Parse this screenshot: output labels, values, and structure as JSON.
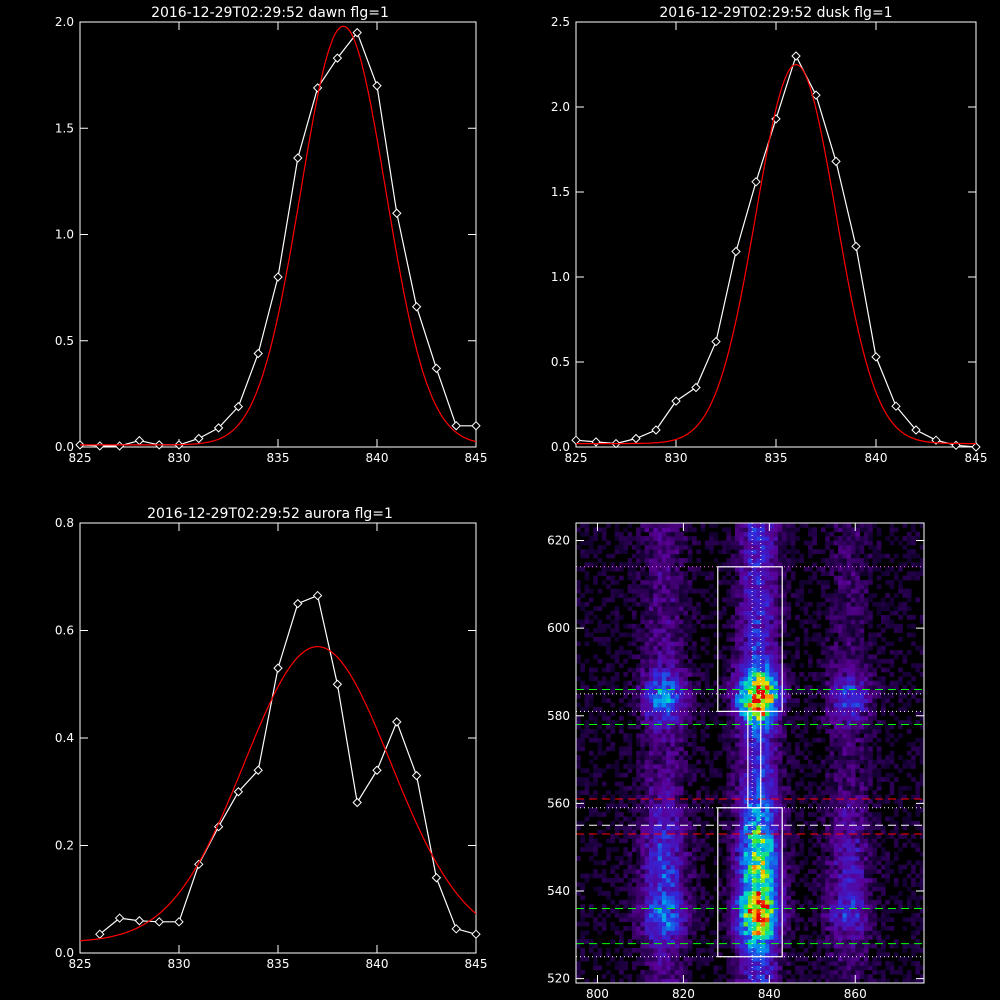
{
  "chart_data": [
    {
      "type": "line",
      "title": "2016-12-29T02:29:52 dawn flg=1",
      "xlim": [
        825,
        845
      ],
      "ylim": [
        0,
        2.0
      ],
      "xticks": [
        "825",
        "830",
        "835",
        "840",
        "845"
      ],
      "yticks": [
        "0.0",
        "0.5",
        "1.0",
        "1.5",
        "2.0"
      ],
      "x": [
        825,
        826,
        827,
        828,
        829,
        830,
        831,
        832,
        833,
        834,
        835,
        836,
        837,
        838,
        839,
        840,
        841,
        842,
        843,
        844,
        845
      ],
      "series": [
        {
          "values": [
            0.01,
            0.005,
            0.005,
            0.03,
            0.01,
            0.01,
            0.04,
            0.09,
            0.19,
            0.44,
            0.8,
            1.36,
            1.69,
            1.83,
            1.95,
            1.7,
            1.1,
            0.66,
            0.37,
            0.1,
            0.1
          ],
          "color": "#ffffff",
          "markers": true
        },
        {
          "gaussian": {
            "amplitude": 1.97,
            "center": 838.3,
            "sigma": 2.15,
            "offset": 0.01
          },
          "color": "#ff0000"
        }
      ]
    },
    {
      "type": "line",
      "title": "2016-12-29T02:29:52 dusk flg=1",
      "xlim": [
        825,
        845
      ],
      "ylim": [
        0,
        2.5
      ],
      "xticks": [
        "825",
        "830",
        "835",
        "840",
        "845"
      ],
      "yticks": [
        "0.0",
        "0.5",
        "1.0",
        "1.5",
        "2.0",
        "2.5"
      ],
      "x": [
        825,
        826,
        827,
        828,
        829,
        830,
        831,
        832,
        833,
        834,
        835,
        836,
        837,
        838,
        839,
        840,
        841,
        842,
        843,
        844,
        845
      ],
      "series": [
        {
          "values": [
            0.04,
            0.03,
            0.02,
            0.05,
            0.1,
            0.27,
            0.35,
            0.62,
            1.15,
            1.56,
            1.93,
            2.3,
            2.07,
            1.68,
            1.18,
            0.53,
            0.24,
            0.1,
            0.04,
            0.01,
            0.0
          ],
          "color": "#ffffff",
          "markers": true
        },
        {
          "gaussian": {
            "amplitude": 2.23,
            "center": 836.0,
            "sigma": 2.0,
            "offset": 0.02
          },
          "color": "#ff0000"
        }
      ]
    },
    {
      "type": "line",
      "title": "2016-12-29T02:29:52 aurora flg=1",
      "xlim": [
        825,
        845
      ],
      "ylim": [
        0,
        0.8
      ],
      "xticks": [
        "825",
        "830",
        "835",
        "840",
        "845"
      ],
      "yticks": [
        "0.0",
        "0.2",
        "0.4",
        "0.6",
        "0.8"
      ],
      "x": [
        826,
        827,
        828,
        829,
        830,
        831,
        832,
        833,
        834,
        835,
        836,
        837,
        838,
        839,
        840,
        841,
        842,
        843,
        844,
        845
      ],
      "series": [
        {
          "values": [
            0.035,
            0.065,
            0.06,
            0.058,
            0.058,
            0.165,
            0.235,
            0.3,
            0.34,
            0.53,
            0.65,
            0.665,
            0.5,
            0.28,
            0.34,
            0.43,
            0.33,
            0.14,
            0.045,
            0.035
          ],
          "color": "#ffffff",
          "markers": true
        },
        {
          "gaussian": {
            "amplitude": 0.55,
            "center": 837.0,
            "sigma": 3.7,
            "offset": 0.02
          },
          "color": "#ff0000"
        }
      ]
    },
    {
      "type": "heatmap",
      "title": "",
      "xlim": [
        795,
        876
      ],
      "ylim": [
        519,
        624
      ],
      "xticks": [
        "800",
        "820",
        "840",
        "860"
      ],
      "yticks": [
        "520",
        "540",
        "560",
        "580",
        "600",
        "620"
      ],
      "hot_columns": [
        {
          "center": 815,
          "width": 3.5,
          "strength": 0.45
        },
        {
          "center": 837,
          "width": 3.2,
          "strength": 1.0
        },
        {
          "center": 858,
          "width": 3.5,
          "strength": 0.3
        }
      ],
      "hot_rows": [
        {
          "center": 584,
          "width": 4,
          "strength": 1.0
        },
        {
          "center": 535,
          "width": 5,
          "strength": 0.9
        },
        {
          "center": 545,
          "width": 10,
          "strength": 0.55
        }
      ],
      "boxes": [
        {
          "x0": 828,
          "x1": 843,
          "y0": 581,
          "y1": 614
        },
        {
          "x0": 828,
          "x1": 843,
          "y0": 525,
          "y1": 559
        }
      ],
      "connector": {
        "x0": 835,
        "x1": 838,
        "y0": 559,
        "y1": 581
      },
      "hlines": [
        {
          "y": 614,
          "color": "#ff66ff",
          "style": "dotted"
        },
        {
          "y": 586,
          "color": "#00ff00",
          "style": "dashed"
        },
        {
          "y": 585,
          "color": "#ffffff",
          "style": "dotted"
        },
        {
          "y": 581,
          "color": "#ffffff",
          "style": "dotted"
        },
        {
          "y": 578,
          "color": "#00ff00",
          "style": "dashed"
        },
        {
          "y": 561,
          "color": "#ff0000",
          "style": "dashed"
        },
        {
          "y": 559,
          "color": "#ffffff",
          "style": "dotted"
        },
        {
          "y": 555,
          "color": "#ffffff",
          "style": "dashed"
        },
        {
          "y": 553,
          "color": "#ff0000",
          "style": "dashed"
        },
        {
          "y": 536,
          "color": "#00ff00",
          "style": "dashed"
        },
        {
          "y": 528,
          "color": "#00ff00",
          "style": "dashed"
        },
        {
          "y": 525,
          "color": "#ffffff",
          "style": "dotted"
        }
      ],
      "vlines": [
        {
          "x": 836,
          "color": "#ffffff",
          "style": "dotted"
        },
        {
          "x": 838,
          "color": "#ffffff",
          "style": "dotted"
        }
      ]
    }
  ]
}
